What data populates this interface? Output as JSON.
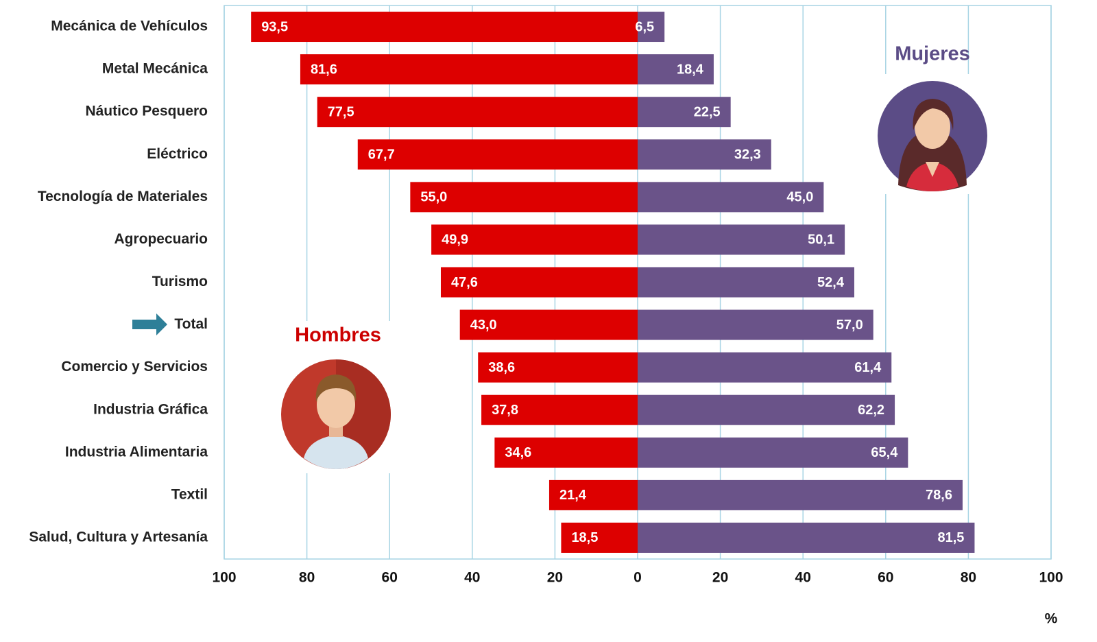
{
  "chart_data": {
    "type": "diverging-bar",
    "categories": [
      "Mecánica de Vehículos",
      "Metal Mecánica",
      "Náutico Pesquero",
      "Eléctrico",
      "Tecnología de Materiales",
      "Agropecuario",
      "Turismo",
      "Total",
      "Comercio y Servicios",
      "Industria Gráfica",
      "Industria Alimentaria",
      "Textil",
      "Salud, Cultura y Artesanía"
    ],
    "series": [
      {
        "name": "Hombres",
        "color": "#dd0000",
        "side": "left",
        "values": [
          93.5,
          81.6,
          77.5,
          67.7,
          55.0,
          49.9,
          47.6,
          43.0,
          38.6,
          37.8,
          34.6,
          21.4,
          18.5
        ],
        "value_labels": [
          "93,5",
          "81,6",
          "77,5",
          "67,7",
          "55,0",
          "49,9",
          "47,6",
          "43,0",
          "38,6",
          "37,8",
          "34,6",
          "21,4",
          "18,5"
        ]
      },
      {
        "name": "Mujeres",
        "color": "#6a5389",
        "side": "right",
        "values": [
          6.5,
          18.4,
          22.5,
          32.3,
          45.0,
          50.1,
          52.4,
          57.0,
          61.4,
          62.2,
          65.4,
          78.6,
          81.5
        ],
        "value_labels": [
          "6,5",
          "18,4",
          "22,5",
          "32,3",
          "45,0",
          "50,1",
          "52,4",
          "57,0",
          "61,4",
          "62,2",
          "65,4",
          "78,6",
          "81,5"
        ]
      }
    ],
    "xlabel": "%",
    "xlim": [
      -100,
      100
    ],
    "xticks": [
      {
        "value": -100,
        "label": "100"
      },
      {
        "value": -80,
        "label": "80"
      },
      {
        "value": -60,
        "label": "60"
      },
      {
        "value": -40,
        "label": "40"
      },
      {
        "value": -20,
        "label": "20"
      },
      0,
      20,
      40,
      60,
      80,
      100
    ],
    "grid": true
  }
}
